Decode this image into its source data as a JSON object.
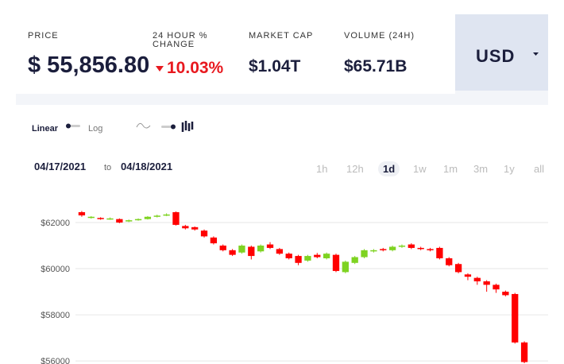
{
  "header": {
    "stats": [
      {
        "label": "PRICE",
        "value": "$ 55,856.80"
      },
      {
        "label": "24 HOUR % CHANGE",
        "value": "10.03%"
      },
      {
        "label": "MARKET CAP",
        "value": "$1.04T"
      },
      {
        "label": "VOLUME (24H)",
        "value": "$65.71B"
      }
    ],
    "currency": "USD"
  },
  "controls": {
    "scale": [
      "Linear",
      "Log"
    ],
    "date_from": "04/17/2021",
    "date_sep": "to",
    "date_to": "04/18/2021",
    "ranges": [
      "1h",
      "12h",
      "1d",
      "1w",
      "1m",
      "3m",
      "1y",
      "all"
    ],
    "active_range": "1d"
  },
  "chart_data": {
    "type": "candlestick",
    "up_color": "#7ed321",
    "down_color": "#ff0000",
    "grid": true,
    "ylim": [
      55900,
      63000
    ],
    "yticks": [
      {
        "value": 56000,
        "label": "$56000"
      },
      {
        "value": 58000,
        "label": "$58000"
      },
      {
        "value": 60000,
        "label": "$60000"
      },
      {
        "value": 62000,
        "label": "$62000"
      }
    ],
    "open": [
      62450,
      62200,
      62200,
      62150,
      62150,
      62050,
      62100,
      62150,
      62250,
      62300,
      62450,
      61850,
      61800,
      61650,
      61350,
      61000,
      60800,
      60700,
      60950,
      60750,
      61050,
      60850,
      60650,
      60550,
      60350,
      60600,
      60450,
      60600,
      59850,
      60250,
      60500,
      60750,
      60850,
      60800,
      60950,
      61050,
      60900,
      60850,
      60900,
      60450,
      60200,
      59750,
      59600,
      59450,
      59300,
      59000,
      58900,
      56800
    ],
    "close": [
      62310,
      62250,
      62150,
      62180,
      62000,
      62100,
      62150,
      62250,
      62300,
      62350,
      61900,
      61750,
      61700,
      61400,
      61100,
      60800,
      60600,
      61000,
      60550,
      61000,
      60900,
      60650,
      60450,
      60250,
      60550,
      60500,
      60650,
      59900,
      60300,
      60500,
      60800,
      60800,
      60800,
      60950,
      61000,
      60900,
      60850,
      60800,
      60450,
      60150,
      59850,
      59650,
      59450,
      59300,
      59100,
      58850,
      56800,
      55950
    ],
    "high": [
      62500,
      62280,
      62230,
      62220,
      62180,
      62130,
      62180,
      62280,
      62340,
      62400,
      62480,
      61900,
      61830,
      61700,
      61400,
      61050,
      60850,
      61050,
      61000,
      61050,
      61150,
      60900,
      60700,
      60600,
      60600,
      60680,
      60700,
      60650,
      60350,
      60550,
      60850,
      60850,
      60900,
      61000,
      61050,
      61100,
      60950,
      60900,
      60950,
      60500,
      60250,
      59800,
      59650,
      59500,
      59350,
      59050,
      58950,
      56850
    ],
    "low": [
      62250,
      62170,
      62120,
      62120,
      61970,
      62020,
      62080,
      62130,
      62220,
      62280,
      61870,
      61700,
      61650,
      61350,
      61050,
      60750,
      60550,
      60650,
      60400,
      60700,
      60850,
      60600,
      60400,
      60150,
      60300,
      60450,
      60400,
      59850,
      59800,
      60200,
      60450,
      60700,
      60750,
      60750,
      60900,
      60850,
      60800,
      60750,
      60400,
      60100,
      59800,
      59500,
      59300,
      59000,
      58950,
      58800,
      56750,
      55900
    ]
  }
}
